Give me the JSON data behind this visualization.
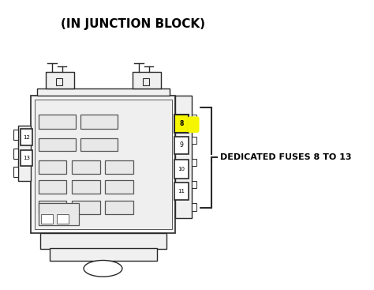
{
  "title": "(IN JUNCTION BLOCK)",
  "title_fontsize": 11,
  "title_weight": "bold",
  "label_text": "DEDICATED FUSES 8 TO 13",
  "label_fontsize": 8,
  "label_weight": "bold",
  "bg_color": "#ffffff",
  "line_color": "#2a2a2a",
  "fuse_highlight_color": "#f5f500",
  "fuse_labels": [
    "8",
    "9",
    "10",
    "11",
    "12",
    "13"
  ]
}
